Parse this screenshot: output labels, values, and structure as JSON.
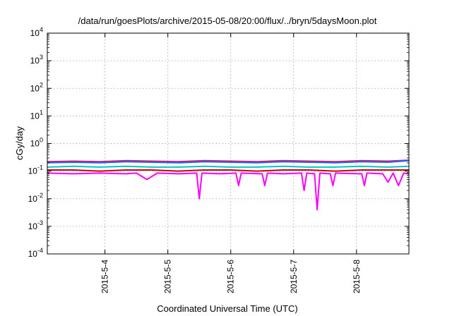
{
  "chart_data": {
    "type": "line",
    "title": "/data/run/goesPlots/archive/2015-05-08/20:00/flux/../bryn/5daysMoon.plot",
    "xlabel": "Coordinated Universal Time (UTC)",
    "ylabel": "cGy/day",
    "yscale": "log",
    "ylim": [
      0.0001,
      10000
    ],
    "y_ticks": [
      {
        "base": "10",
        "exp": "-4",
        "value": 0.0001
      },
      {
        "base": "10",
        "exp": "-3",
        "value": 0.001
      },
      {
        "base": "10",
        "exp": "-2",
        "value": 0.01
      },
      {
        "base": "10",
        "exp": "-1",
        "value": 0.1
      },
      {
        "base": "10",
        "exp": "0",
        "value": 1
      },
      {
        "base": "10",
        "exp": "1",
        "value": 10
      },
      {
        "base": "10",
        "exp": "2",
        "value": 100
      },
      {
        "base": "10",
        "exp": "3",
        "value": 1000
      },
      {
        "base": "10",
        "exp": "4",
        "value": 10000
      }
    ],
    "xlim": [
      "2015-05-03 02:00",
      "2015-05-08 20:00"
    ],
    "x_ticks": [
      "2015-5-4",
      "2015-5-5",
      "2015-5-6",
      "2015-5-7",
      "2015-5-8"
    ],
    "grid": true,
    "legend": "none",
    "series": [
      {
        "color": "#d81b60",
        "points": [
          [
            "2015-05-03 02:00",
            0.22
          ],
          [
            "2015-05-03 12:00",
            0.23
          ],
          [
            "2015-05-03 22:00",
            0.22
          ],
          [
            "2015-05-04 08:00",
            0.24
          ],
          [
            "2015-05-04 18:00",
            0.23
          ],
          [
            "2015-05-05 04:00",
            0.22
          ],
          [
            "2015-05-05 14:00",
            0.24
          ],
          [
            "2015-05-06 00:00",
            0.23
          ],
          [
            "2015-05-06 10:00",
            0.22
          ],
          [
            "2015-05-06 20:00",
            0.24
          ],
          [
            "2015-05-07 06:00",
            0.23
          ],
          [
            "2015-05-07 16:00",
            0.22
          ],
          [
            "2015-05-08 02:00",
            0.24
          ],
          [
            "2015-05-08 12:00",
            0.23
          ],
          [
            "2015-05-08 20:00",
            0.25
          ]
        ]
      },
      {
        "color": "#1e64ff",
        "points": [
          [
            "2015-05-03 02:00",
            0.2
          ],
          [
            "2015-05-03 12:00",
            0.21
          ],
          [
            "2015-05-03 22:00",
            0.2
          ],
          [
            "2015-05-04 08:00",
            0.22
          ],
          [
            "2015-05-04 18:00",
            0.21
          ],
          [
            "2015-05-05 04:00",
            0.2
          ],
          [
            "2015-05-05 14:00",
            0.22
          ],
          [
            "2015-05-06 00:00",
            0.21
          ],
          [
            "2015-05-06 10:00",
            0.2
          ],
          [
            "2015-05-06 20:00",
            0.22
          ],
          [
            "2015-05-07 06:00",
            0.21
          ],
          [
            "2015-05-07 16:00",
            0.2
          ],
          [
            "2015-05-08 02:00",
            0.22
          ],
          [
            "2015-05-08 12:00",
            0.21
          ],
          [
            "2015-05-08 20:00",
            0.24
          ]
        ]
      },
      {
        "color": "#00c8c8",
        "points": [
          [
            "2015-05-03 02:00",
            0.14
          ],
          [
            "2015-05-03 12:00",
            0.15
          ],
          [
            "2015-05-03 22:00",
            0.14
          ],
          [
            "2015-05-04 08:00",
            0.15
          ],
          [
            "2015-05-04 18:00",
            0.14
          ],
          [
            "2015-05-05 04:00",
            0.14
          ],
          [
            "2015-05-05 14:00",
            0.15
          ],
          [
            "2015-05-06 00:00",
            0.14
          ],
          [
            "2015-05-06 10:00",
            0.14
          ],
          [
            "2015-05-06 20:00",
            0.15
          ],
          [
            "2015-05-07 06:00",
            0.14
          ],
          [
            "2015-05-07 16:00",
            0.14
          ],
          [
            "2015-05-08 02:00",
            0.15
          ],
          [
            "2015-05-08 12:00",
            0.14
          ],
          [
            "2015-05-08 20:00",
            0.15
          ]
        ]
      },
      {
        "color": "#cc0000",
        "points": [
          [
            "2015-05-03 02:00",
            0.11
          ],
          [
            "2015-05-03 12:00",
            0.11
          ],
          [
            "2015-05-03 22:00",
            0.1
          ],
          [
            "2015-05-04 08:00",
            0.11
          ],
          [
            "2015-05-04 18:00",
            0.11
          ],
          [
            "2015-05-05 04:00",
            0.1
          ],
          [
            "2015-05-05 14:00",
            0.11
          ],
          [
            "2015-05-06 00:00",
            0.11
          ],
          [
            "2015-05-06 10:00",
            0.1
          ],
          [
            "2015-05-06 20:00",
            0.11
          ],
          [
            "2015-05-07 06:00",
            0.11
          ],
          [
            "2015-05-07 16:00",
            0.1
          ],
          [
            "2015-05-08 02:00",
            0.11
          ],
          [
            "2015-05-08 12:00",
            0.11
          ],
          [
            "2015-05-08 20:00",
            0.11
          ]
        ]
      },
      {
        "color": "#ff00ff",
        "points": [
          [
            "2015-05-03 02:00",
            0.085
          ],
          [
            "2015-05-03 12:00",
            0.08
          ],
          [
            "2015-05-03 22:00",
            0.085
          ],
          [
            "2015-05-04 08:00",
            0.08
          ],
          [
            "2015-05-04 12:00",
            0.085
          ],
          [
            "2015-05-04 16:00",
            0.05
          ],
          [
            "2015-05-04 20:00",
            0.085
          ],
          [
            "2015-05-05 04:00",
            0.08
          ],
          [
            "2015-05-05 11:00",
            0.085
          ],
          [
            "2015-05-05 12:00",
            0.01
          ],
          [
            "2015-05-05 13:00",
            0.085
          ],
          [
            "2015-05-05 20:00",
            0.08
          ],
          [
            "2015-05-06 02:00",
            0.085
          ],
          [
            "2015-05-06 03:00",
            0.03
          ],
          [
            "2015-05-06 04:00",
            0.085
          ],
          [
            "2015-05-06 12:00",
            0.08
          ],
          [
            "2015-05-06 13:00",
            0.03
          ],
          [
            "2015-05-06 14:00",
            0.085
          ],
          [
            "2015-05-06 20:00",
            0.08
          ],
          [
            "2015-05-07 03:00",
            0.085
          ],
          [
            "2015-05-07 04:00",
            0.02
          ],
          [
            "2015-05-07 05:00",
            0.085
          ],
          [
            "2015-05-07 08:00",
            0.08
          ],
          [
            "2015-05-07 09:00",
            0.004
          ],
          [
            "2015-05-07 10:00",
            0.085
          ],
          [
            "2015-05-07 14:00",
            0.08
          ],
          [
            "2015-05-07 15:00",
            0.03
          ],
          [
            "2015-05-07 16:00",
            0.085
          ],
          [
            "2015-05-08 02:00",
            0.08
          ],
          [
            "2015-05-08 03:00",
            0.03
          ],
          [
            "2015-05-08 04:00",
            0.085
          ],
          [
            "2015-05-08 10:00",
            0.08
          ],
          [
            "2015-05-08 12:00",
            0.04
          ],
          [
            "2015-05-08 14:00",
            0.085
          ],
          [
            "2015-05-08 16:00",
            0.03
          ],
          [
            "2015-05-08 18:00",
            0.085
          ],
          [
            "2015-05-08 20:00",
            0.08
          ]
        ]
      }
    ]
  }
}
